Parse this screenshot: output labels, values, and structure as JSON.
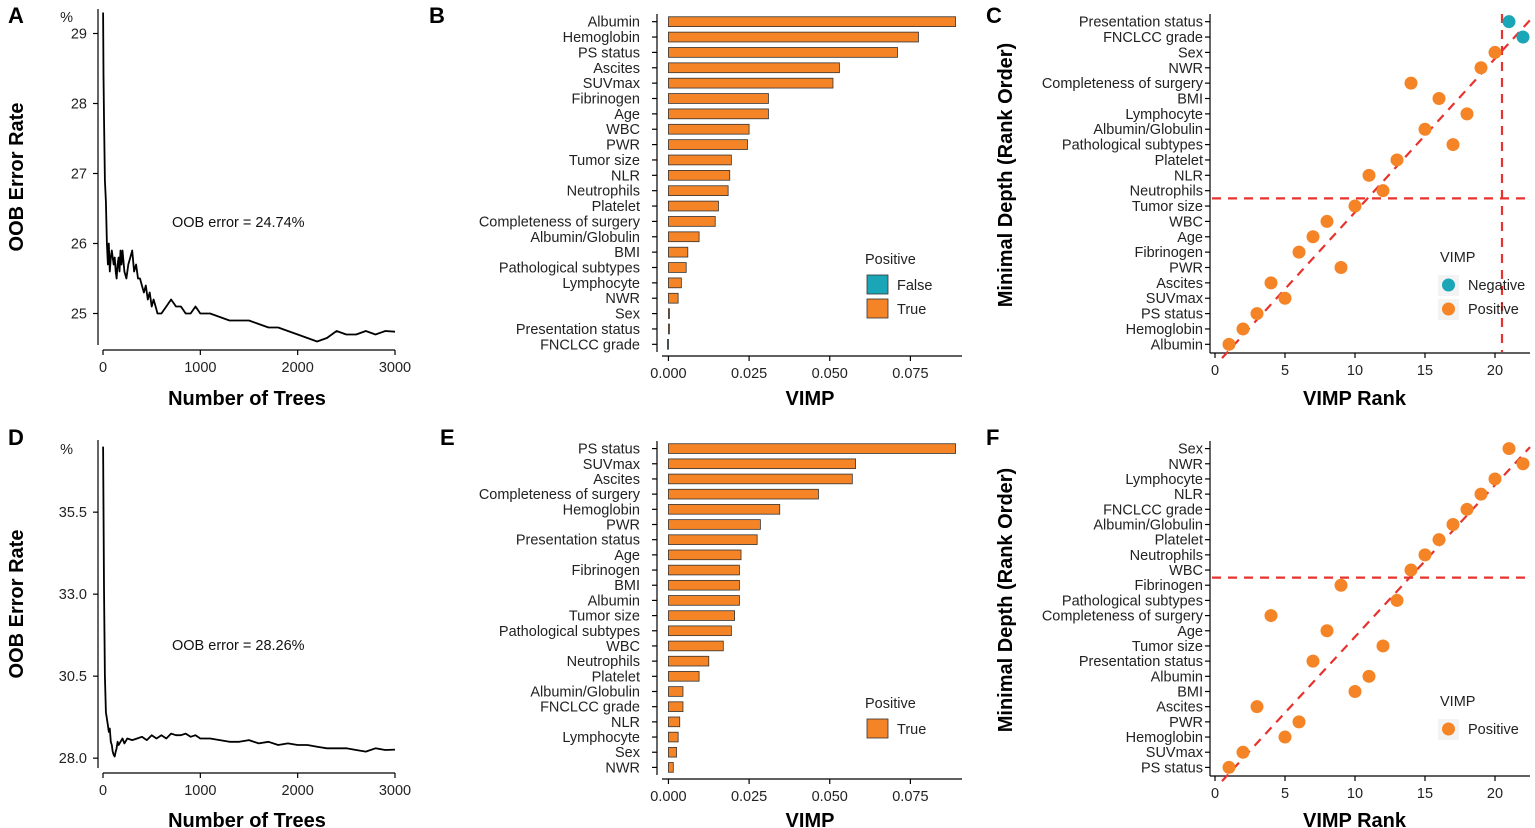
{
  "chart_data": [
    {
      "panel": "A",
      "type": "line",
      "title": "",
      "xlabel": "Number of Trees",
      "ylabel": "OOB Error Rate",
      "yunit_label": "%",
      "annotation": "OOB error = 24.74%",
      "xlim": [
        0,
        3000
      ],
      "ylim": [
        24.55,
        29.35
      ],
      "xticks": [
        0,
        1000,
        2000,
        3000
      ],
      "yticks": [
        25,
        26,
        27,
        28,
        29
      ],
      "series": [
        {
          "name": "OOB error",
          "x": [
            1,
            5,
            10,
            20,
            30,
            40,
            50,
            60,
            70,
            80,
            90,
            100,
            110,
            120,
            130,
            140,
            150,
            160,
            170,
            180,
            190,
            200,
            220,
            240,
            260,
            280,
            300,
            320,
            340,
            360,
            380,
            400,
            420,
            440,
            460,
            480,
            500,
            520,
            540,
            560,
            580,
            600,
            650,
            700,
            750,
            800,
            850,
            900,
            950,
            1000,
            1100,
            1200,
            1300,
            1400,
            1500,
            1600,
            1700,
            1800,
            1900,
            2000,
            2100,
            2200,
            2300,
            2400,
            2500,
            2600,
            2700,
            2800,
            2900,
            3000
          ],
          "values": [
            29.3,
            28.4,
            27.8,
            26.9,
            26.6,
            26.0,
            25.7,
            26.0,
            25.6,
            25.8,
            25.9,
            25.8,
            25.7,
            25.8,
            25.6,
            25.5,
            25.7,
            25.8,
            25.6,
            25.9,
            25.7,
            25.9,
            25.6,
            25.5,
            25.7,
            25.8,
            25.9,
            25.6,
            25.7,
            25.5,
            25.5,
            25.4,
            25.3,
            25.4,
            25.2,
            25.3,
            25.1,
            25.2,
            25.1,
            25.0,
            25.0,
            25.0,
            25.1,
            25.2,
            25.1,
            25.1,
            25.0,
            25.0,
            25.1,
            25.0,
            25.0,
            24.95,
            24.9,
            24.9,
            24.9,
            24.85,
            24.8,
            24.8,
            24.75,
            24.7,
            24.65,
            24.6,
            24.65,
            24.75,
            24.7,
            24.7,
            24.75,
            24.7,
            24.75,
            24.74
          ]
        }
      ]
    },
    {
      "panel": "B",
      "type": "bar",
      "orientation": "horizontal",
      "xlabel": "VIMP",
      "ylabel": "",
      "xlim": [
        -0.002,
        0.091
      ],
      "xticks": [
        0.0,
        0.025,
        0.05,
        0.075
      ],
      "xtick_labels": [
        "0.000",
        "0.025",
        "0.050",
        "0.075"
      ],
      "legend": {
        "title": "Positive",
        "items": [
          {
            "label": "False",
            "color": "#1aa6b7"
          },
          {
            "label": "True",
            "color": "#f58426"
          }
        ],
        "position": "right"
      },
      "categories": [
        "Albumin",
        "Hemoglobin",
        "PS status",
        "Ascites",
        "SUVmax",
        "Fibrinogen",
        "Age",
        "WBC",
        "PWR",
        "Tumor size",
        "NLR",
        "Neutrophils",
        "Platelet",
        "Completeness of surgery",
        "Albumin/Globulin",
        "BMI",
        "Pathological subtypes",
        "Lymphocyte",
        "NWR",
        "Sex",
        "Presentation status",
        "FNCLCC grade"
      ],
      "values": [
        0.089,
        0.0775,
        0.071,
        0.053,
        0.051,
        0.031,
        0.031,
        0.025,
        0.0245,
        0.0195,
        0.019,
        0.0185,
        0.0155,
        0.0145,
        0.0095,
        0.006,
        0.0055,
        0.004,
        0.003,
        0.0,
        0.0,
        -0.0003
      ],
      "positive": [
        true,
        true,
        true,
        true,
        true,
        true,
        true,
        true,
        true,
        true,
        true,
        true,
        true,
        true,
        true,
        true,
        true,
        true,
        true,
        true,
        true,
        false
      ]
    },
    {
      "panel": "C",
      "type": "scatter",
      "xlabel": "VIMP Rank",
      "ylabel": "Minimal Depth (Rank Order)",
      "xlim": [
        0,
        22.5
      ],
      "xticks": [
        0,
        5,
        10,
        15,
        20
      ],
      "categories": [
        "Albumin",
        "Hemoglobin",
        "PS status",
        "SUVmax",
        "Ascites",
        "PWR",
        "Fibrinogen",
        "Age",
        "WBC",
        "Tumor size",
        "Neutrophils",
        "NLR",
        "Platelet",
        "Pathological subtypes",
        "Albumin/Globulin",
        "Lymphocyte",
        "BMI",
        "Completeness of surgery",
        "NWR",
        "Sex",
        "FNCLCC grade",
        "Presentation status"
      ],
      "points": [
        {
          "name": "Albumin",
          "x": 1,
          "y": 1,
          "vimp": "Positive"
        },
        {
          "name": "Hemoglobin",
          "x": 2,
          "y": 2,
          "vimp": "Positive"
        },
        {
          "name": "PS status",
          "x": 3,
          "y": 3,
          "vimp": "Positive"
        },
        {
          "name": "SUVmax",
          "x": 5,
          "y": 4,
          "vimp": "Positive"
        },
        {
          "name": "Ascites",
          "x": 4,
          "y": 5,
          "vimp": "Positive"
        },
        {
          "name": "PWR",
          "x": 9,
          "y": 6,
          "vimp": "Positive"
        },
        {
          "name": "Fibrinogen",
          "x": 6,
          "y": 7,
          "vimp": "Positive"
        },
        {
          "name": "Age",
          "x": 7,
          "y": 8,
          "vimp": "Positive"
        },
        {
          "name": "WBC",
          "x": 8,
          "y": 9,
          "vimp": "Positive"
        },
        {
          "name": "Tumor size",
          "x": 10,
          "y": 10,
          "vimp": "Positive"
        },
        {
          "name": "Neutrophils",
          "x": 12,
          "y": 11,
          "vimp": "Positive"
        },
        {
          "name": "NLR",
          "x": 11,
          "y": 12,
          "vimp": "Positive"
        },
        {
          "name": "Platelet",
          "x": 13,
          "y": 13,
          "vimp": "Positive"
        },
        {
          "name": "Pathological subtypes",
          "x": 17,
          "y": 14,
          "vimp": "Positive"
        },
        {
          "name": "Albumin/Globulin",
          "x": 15,
          "y": 15,
          "vimp": "Positive"
        },
        {
          "name": "Lymphocyte",
          "x": 18,
          "y": 16,
          "vimp": "Positive"
        },
        {
          "name": "BMI",
          "x": 16,
          "y": 17,
          "vimp": "Positive"
        },
        {
          "name": "Completeness of surgery",
          "x": 14,
          "y": 18,
          "vimp": "Positive"
        },
        {
          "name": "NWR",
          "x": 19,
          "y": 19,
          "vimp": "Positive"
        },
        {
          "name": "Sex",
          "x": 20,
          "y": 20,
          "vimp": "Positive"
        },
        {
          "name": "FNCLCC grade",
          "x": 22,
          "y": 21,
          "vimp": "Negative"
        },
        {
          "name": "Presentation status",
          "x": 21,
          "y": 22,
          "vimp": "Negative"
        }
      ],
      "reference_lines": {
        "diagonal": true,
        "h": 10.5,
        "v": 20.5
      },
      "legend": {
        "title": "VIMP",
        "items": [
          {
            "label": "Negative",
            "color": "#1aa6b7"
          },
          {
            "label": "Positive",
            "color": "#f58426"
          }
        ],
        "position": "right"
      }
    },
    {
      "panel": "D",
      "type": "line",
      "xlabel": "Number of Trees",
      "ylabel": "OOB Error Rate",
      "yunit_label": "%",
      "annotation": "OOB error = 28.26%",
      "xlim": [
        0,
        3000
      ],
      "ylim": [
        27.7,
        37.7
      ],
      "xticks": [
        0,
        1000,
        2000,
        3000
      ],
      "yticks": [
        28.0,
        30.5,
        33.0,
        35.5
      ],
      "ytick_labels": [
        "28.0",
        "30.5",
        "33.0",
        "35.5"
      ],
      "series": [
        {
          "name": "OOB error",
          "x": [
            1,
            10,
            20,
            30,
            40,
            50,
            60,
            70,
            80,
            90,
            100,
            110,
            120,
            130,
            140,
            150,
            160,
            180,
            200,
            220,
            250,
            300,
            350,
            400,
            450,
            500,
            550,
            600,
            650,
            700,
            750,
            800,
            850,
            900,
            950,
            1000,
            1100,
            1200,
            1300,
            1400,
            1500,
            1600,
            1700,
            1800,
            1900,
            2000,
            2100,
            2200,
            2300,
            2400,
            2500,
            2600,
            2700,
            2800,
            2900,
            3000
          ],
          "values": [
            37.5,
            33.2,
            30.5,
            29.4,
            29.2,
            29.0,
            28.8,
            28.9,
            28.5,
            28.4,
            28.2,
            28.1,
            28.05,
            28.2,
            28.3,
            28.5,
            28.4,
            28.5,
            28.6,
            28.45,
            28.6,
            28.55,
            28.6,
            28.65,
            28.55,
            28.7,
            28.6,
            28.7,
            28.6,
            28.75,
            28.7,
            28.7,
            28.75,
            28.65,
            28.7,
            28.6,
            28.6,
            28.55,
            28.5,
            28.5,
            28.55,
            28.45,
            28.5,
            28.4,
            28.45,
            28.4,
            28.4,
            28.35,
            28.3,
            28.3,
            28.3,
            28.25,
            28.2,
            28.3,
            28.25,
            28.26
          ]
        }
      ]
    },
    {
      "panel": "E",
      "type": "bar",
      "orientation": "horizontal",
      "xlabel": "VIMP",
      "ylabel": "",
      "xlim": [
        -0.002,
        0.091
      ],
      "xticks": [
        0.0,
        0.025,
        0.05,
        0.075
      ],
      "xtick_labels": [
        "0.000",
        "0.025",
        "0.050",
        "0.075"
      ],
      "legend": {
        "title": "Positive",
        "items": [
          {
            "label": "True",
            "color": "#f58426"
          }
        ],
        "position": "right"
      },
      "categories": [
        "PS status",
        "SUVmax",
        "Ascites",
        "Completeness of surgery",
        "Hemoglobin",
        "PWR",
        "Presentation status",
        "Age",
        "Fibrinogen",
        "BMI",
        "Albumin",
        "Tumor size",
        "Pathological subtypes",
        "WBC",
        "Neutrophils",
        "Platelet",
        "Albumin/Globulin",
        "FNCLCC grade",
        "NLR",
        "Lymphocyte",
        "Sex",
        "NWR"
      ],
      "values": [
        0.089,
        0.058,
        0.057,
        0.0465,
        0.0345,
        0.0285,
        0.0275,
        0.0225,
        0.022,
        0.022,
        0.022,
        0.0205,
        0.0195,
        0.017,
        0.0125,
        0.0095,
        0.0045,
        0.0045,
        0.0035,
        0.003,
        0.0025,
        0.0015
      ],
      "positive": [
        true,
        true,
        true,
        true,
        true,
        true,
        true,
        true,
        true,
        true,
        true,
        true,
        true,
        true,
        true,
        true,
        true,
        true,
        true,
        true,
        true,
        true
      ]
    },
    {
      "panel": "F",
      "type": "scatter",
      "xlabel": "VIMP Rank",
      "ylabel": "Minimal Depth (Rank Order)",
      "xlim": [
        0,
        22.5
      ],
      "xticks": [
        0,
        5,
        10,
        15,
        20
      ],
      "categories": [
        "PS status",
        "SUVmax",
        "Hemoglobin",
        "PWR",
        "Ascites",
        "BMI",
        "Albumin",
        "Presentation status",
        "Tumor size",
        "Age",
        "Completeness of surgery",
        "Pathological subtypes",
        "Fibrinogen",
        "WBC",
        "Neutrophils",
        "Platelet",
        "Albumin/Globulin",
        "FNCLCC grade",
        "NLR",
        "Lymphocyte",
        "NWR",
        "Sex"
      ],
      "points": [
        {
          "name": "PS status",
          "x": 1,
          "y": 1,
          "vimp": "Positive"
        },
        {
          "name": "SUVmax",
          "x": 2,
          "y": 2,
          "vimp": "Positive"
        },
        {
          "name": "Hemoglobin",
          "x": 5,
          "y": 3,
          "vimp": "Positive"
        },
        {
          "name": "PWR",
          "x": 6,
          "y": 4,
          "vimp": "Positive"
        },
        {
          "name": "Ascites",
          "x": 3,
          "y": 5,
          "vimp": "Positive"
        },
        {
          "name": "BMI",
          "x": 10,
          "y": 6,
          "vimp": "Positive"
        },
        {
          "name": "Albumin",
          "x": 11,
          "y": 7,
          "vimp": "Positive"
        },
        {
          "name": "Presentation status",
          "x": 7,
          "y": 8,
          "vimp": "Positive"
        },
        {
          "name": "Tumor size",
          "x": 12,
          "y": 9,
          "vimp": "Positive"
        },
        {
          "name": "Age",
          "x": 8,
          "y": 10,
          "vimp": "Positive"
        },
        {
          "name": "Completeness of surgery",
          "x": 4,
          "y": 11,
          "vimp": "Positive"
        },
        {
          "name": "Pathological subtypes",
          "x": 13,
          "y": 12,
          "vimp": "Positive"
        },
        {
          "name": "Fibrinogen",
          "x": 9,
          "y": 13,
          "vimp": "Positive"
        },
        {
          "name": "WBC",
          "x": 14,
          "y": 14,
          "vimp": "Positive"
        },
        {
          "name": "Neutrophils",
          "x": 15,
          "y": 15,
          "vimp": "Positive"
        },
        {
          "name": "Platelet",
          "x": 16,
          "y": 16,
          "vimp": "Positive"
        },
        {
          "name": "Albumin/Globulin",
          "x": 17,
          "y": 17,
          "vimp": "Positive"
        },
        {
          "name": "FNCLCC grade",
          "x": 18,
          "y": 18,
          "vimp": "Positive"
        },
        {
          "name": "NLR",
          "x": 19,
          "y": 19,
          "vimp": "Positive"
        },
        {
          "name": "Lymphocyte",
          "x": 20,
          "y": 20,
          "vimp": "Positive"
        },
        {
          "name": "NWR",
          "x": 22,
          "y": 21,
          "vimp": "Positive"
        },
        {
          "name": "Sex",
          "x": 21,
          "y": 22,
          "vimp": "Positive"
        }
      ],
      "reference_lines": {
        "diagonal": true,
        "h": 13.5
      },
      "legend": {
        "title": "VIMP",
        "items": [
          {
            "label": "Positive",
            "color": "#f58426"
          }
        ],
        "position": "right"
      }
    }
  ],
  "colors": {
    "positive": "#f58426",
    "negative": "#1aa6b7",
    "refline": "#e8322d",
    "line": "#000000"
  }
}
